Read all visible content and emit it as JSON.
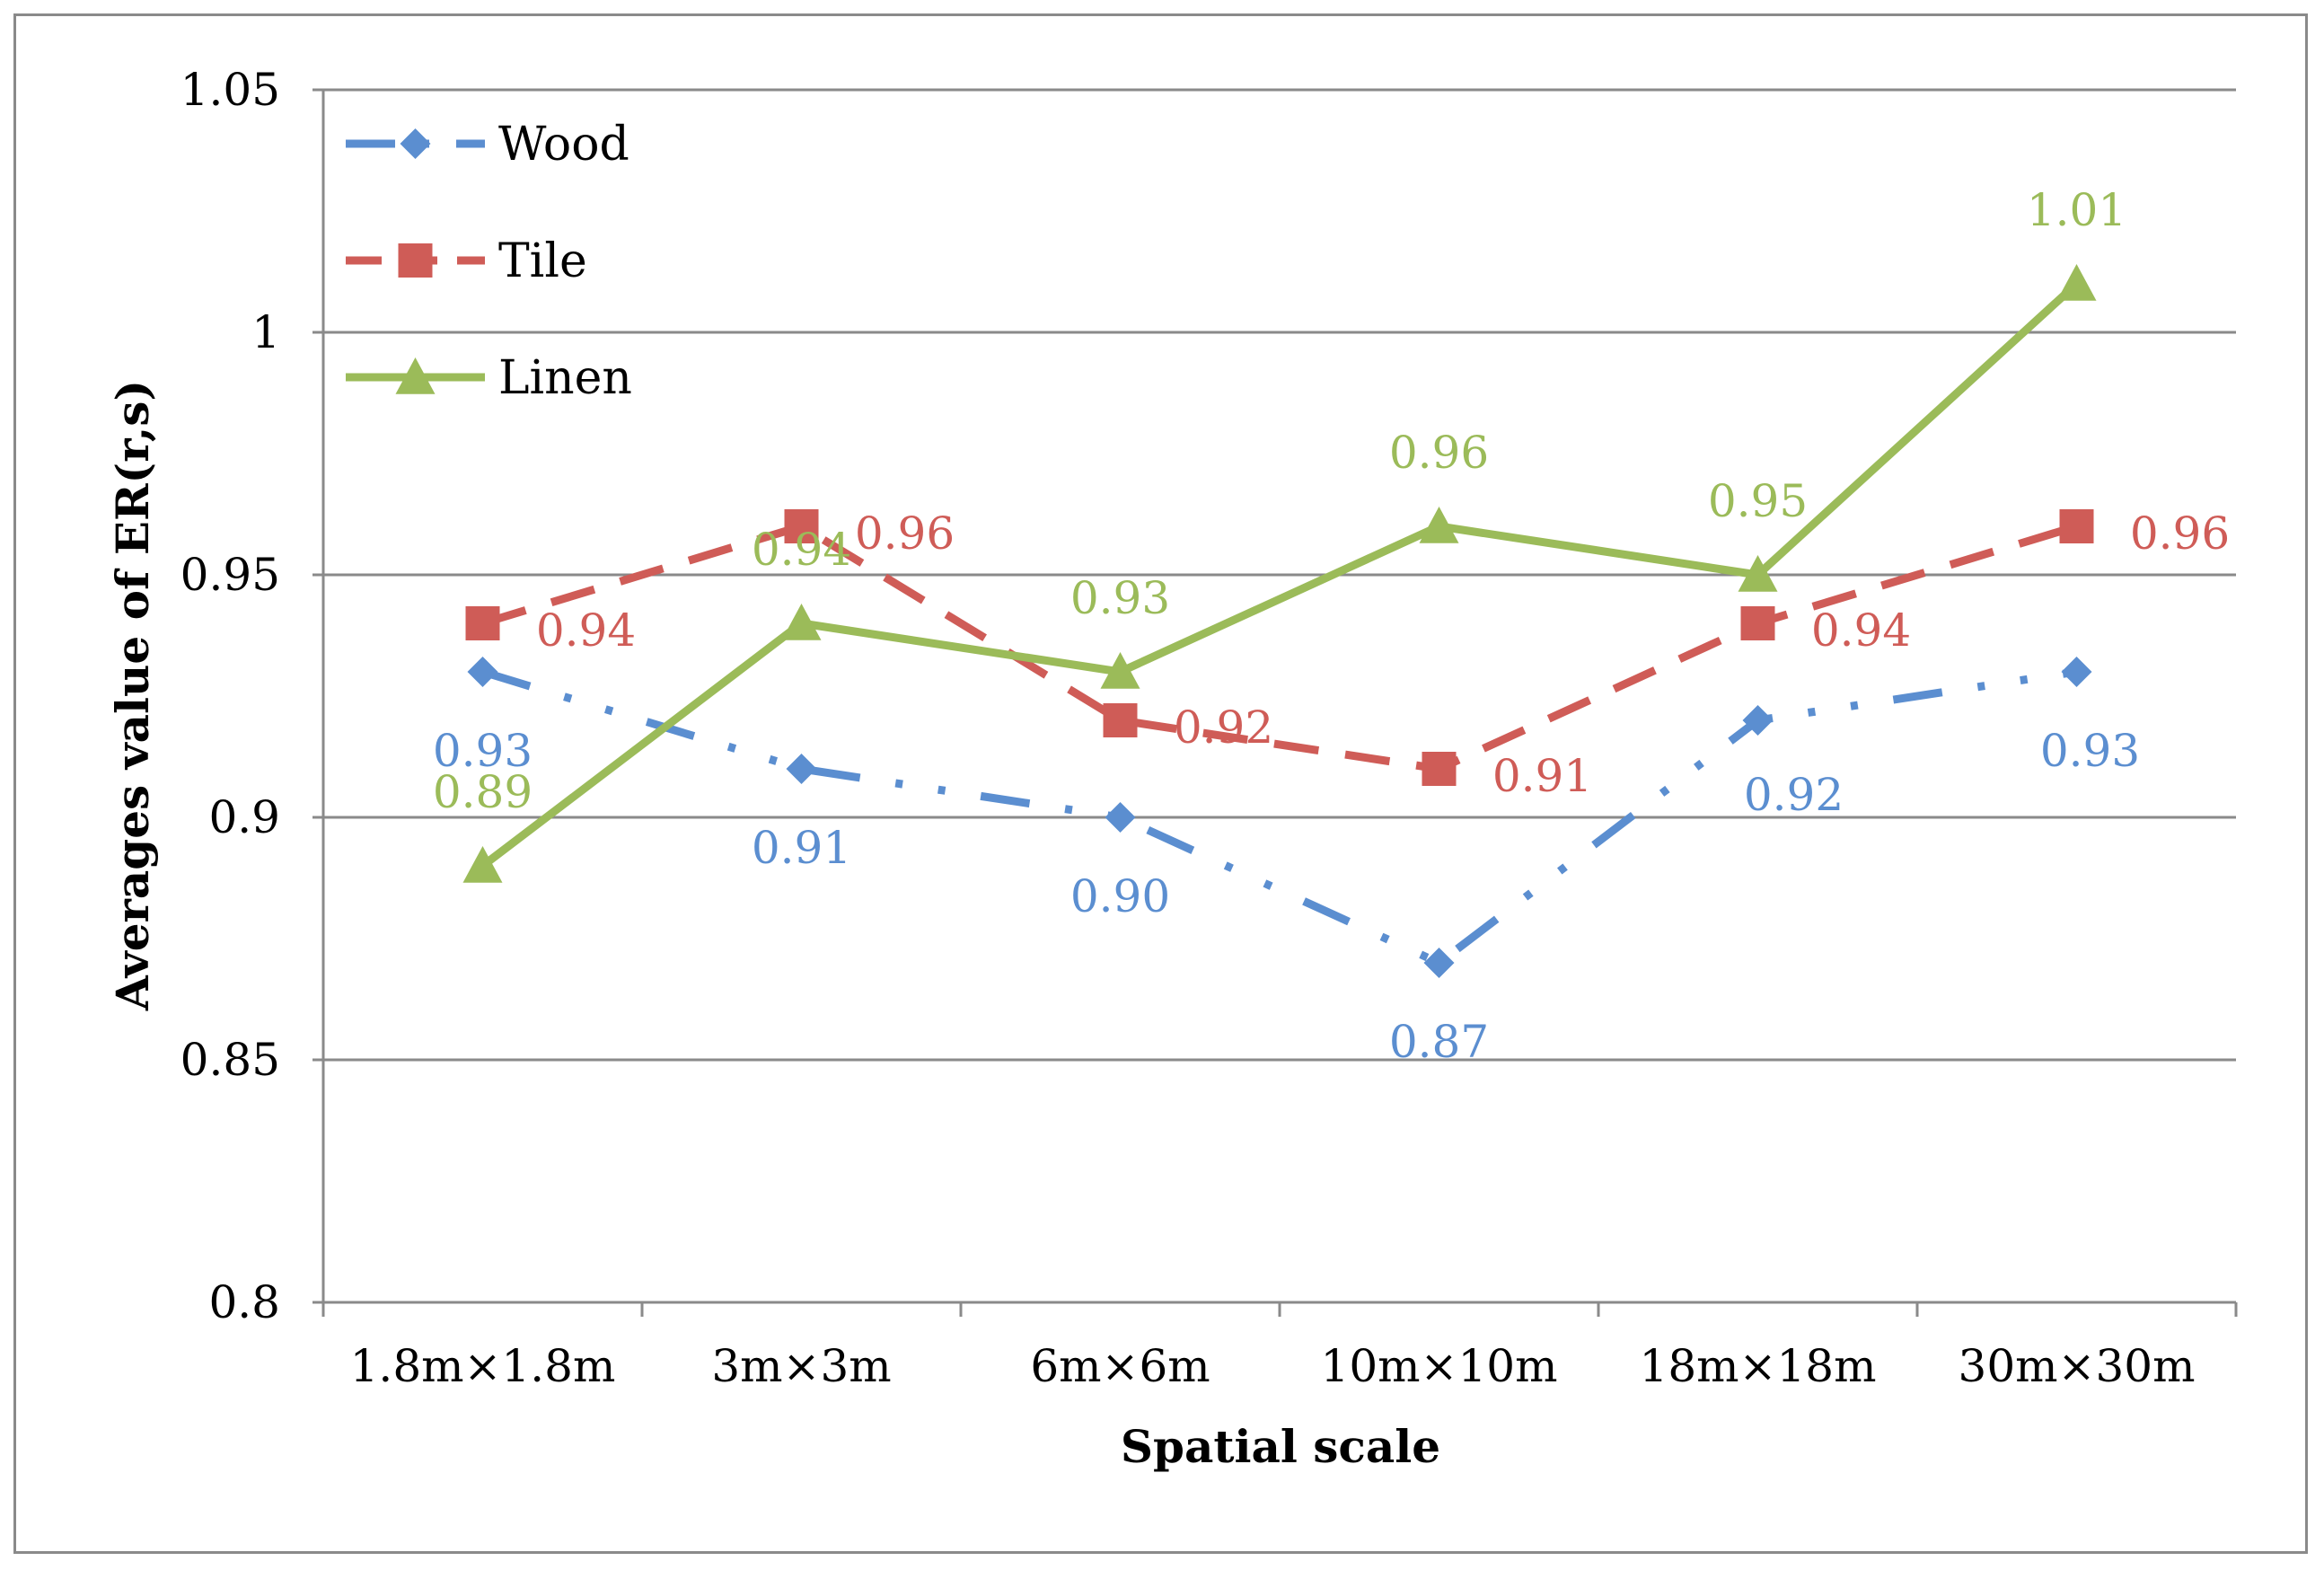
{
  "chart_data": {
    "type": "line",
    "title": "",
    "xlabel": "Spatial scale",
    "ylabel": "Averages value of ER(r,s)",
    "categories": [
      "1.8m×1.8m",
      "3m×3m",
      "6m×6m",
      "10m×10m",
      "18m×18m",
      "30m×30m"
    ],
    "ylim": [
      0.8,
      1.05
    ],
    "yticks": [
      "0.8",
      "0.85",
      "0.9",
      "0.95",
      "1",
      "1.05"
    ],
    "grid": true,
    "legend_position": "top-left",
    "series": [
      {
        "name": "Wood",
        "color": "#5b8ed0",
        "marker": "diamond",
        "line_style": "dash-dot-dot",
        "values": [
          0.93,
          0.91,
          0.9,
          0.87,
          0.92,
          0.93
        ],
        "labels": [
          "0.93",
          "0.91",
          "0.90",
          "0.87",
          "0.92",
          "0.93"
        ]
      },
      {
        "name": "Tile",
        "color": "#cf5c57",
        "marker": "square",
        "line_style": "dashed",
        "values": [
          0.94,
          0.96,
          0.92,
          0.91,
          0.94,
          0.96
        ],
        "labels": [
          "0.94",
          "0.96",
          "0.92",
          "0.91",
          "0.94",
          "0.96"
        ]
      },
      {
        "name": "Linen",
        "color": "#9bbb59",
        "marker": "triangle",
        "line_style": "solid",
        "values": [
          0.89,
          0.94,
          0.93,
          0.96,
          0.95,
          1.01
        ],
        "labels": [
          "0.89",
          "0.94",
          "0.93",
          "0.96",
          "0.95",
          "1.01"
        ]
      }
    ]
  }
}
